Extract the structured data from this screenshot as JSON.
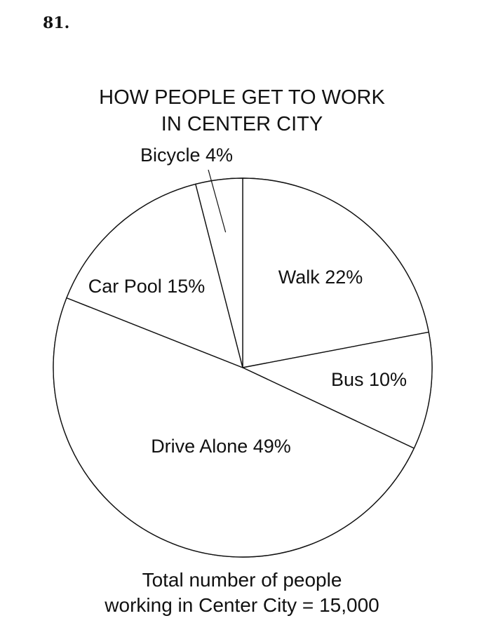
{
  "question_number": "81.",
  "chart_data": {
    "type": "pie",
    "title_line1": "HOW PEOPLE GET TO WORK",
    "title_line2": "IN CENTER CITY",
    "slices": [
      {
        "label": "Walk 22%",
        "category": "Walk",
        "value": 22
      },
      {
        "label": "Bus 10%",
        "category": "Bus",
        "value": 10
      },
      {
        "label": "Drive Alone 49%",
        "category": "Drive Alone",
        "value": 49
      },
      {
        "label": "Car Pool 15%",
        "category": "Car Pool",
        "value": 15
      },
      {
        "label": "Bicycle 4%",
        "category": "Bicycle",
        "value": 4
      }
    ],
    "footer_line1": "Total number of people",
    "footer_line2": "working in Center City = 15,000"
  }
}
